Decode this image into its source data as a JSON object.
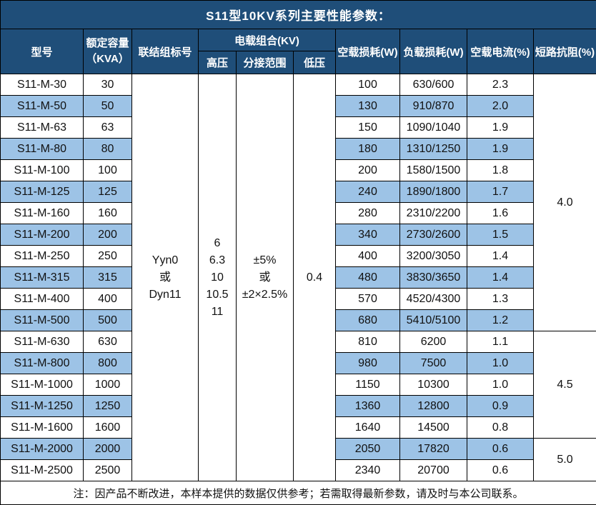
{
  "title": "S11型10KV系列主要性能参数：",
  "colors": {
    "header_bg": "#1F4E79",
    "stripe_bg": "#9DC3E6",
    "border": "#000000",
    "title_text": "#FFFFFF"
  },
  "header": {
    "model": "型号",
    "capacity": "额定容量\n（KVA）",
    "connection": "联结组标号",
    "voltage_group": "电载组合(KV)",
    "hv": "高压",
    "tap_range": "分接范围",
    "lv": "低压",
    "no_load_loss": "空载损耗(W)",
    "load_loss": "负载损耗(W)",
    "no_load_current": "空载电流(%)",
    "impedance": "短路抗阻(%)"
  },
  "merged": {
    "connection": "Yyn0\n或\nDyn11",
    "hv": "6\n6.3\n10\n10.5\n11",
    "tap_range": "±5%\n或\n±2×2.5%",
    "lv": "0.4"
  },
  "rows": [
    {
      "model": "S11-M-30",
      "capacity": "30",
      "no_load_loss": "100",
      "load_loss": "630/600",
      "no_load_current": "2.3"
    },
    {
      "model": "S11-M-50",
      "capacity": "50",
      "no_load_loss": "130",
      "load_loss": "910/870",
      "no_load_current": "2.0"
    },
    {
      "model": "S11-M-63",
      "capacity": "63",
      "no_load_loss": "150",
      "load_loss": "1090/1040",
      "no_load_current": "1.9"
    },
    {
      "model": "S11-M-80",
      "capacity": "80",
      "no_load_loss": "180",
      "load_loss": "1310/1250",
      "no_load_current": "1.9"
    },
    {
      "model": "S11-M-100",
      "capacity": "100",
      "no_load_loss": "200",
      "load_loss": "1580/1500",
      "no_load_current": "1.8"
    },
    {
      "model": "S11-M-125",
      "capacity": "125",
      "no_load_loss": "240",
      "load_loss": "1890/1800",
      "no_load_current": "1.7"
    },
    {
      "model": "S11-M-160",
      "capacity": "160",
      "no_load_loss": "280",
      "load_loss": "2310/2200",
      "no_load_current": "1.6"
    },
    {
      "model": "S11-M-200",
      "capacity": "200",
      "no_load_loss": "340",
      "load_loss": "2730/2600",
      "no_load_current": "1.5"
    },
    {
      "model": "S11-M-250",
      "capacity": "250",
      "no_load_loss": "400",
      "load_loss": "3200/3050",
      "no_load_current": "1.4"
    },
    {
      "model": "S11-M-315",
      "capacity": "315",
      "no_load_loss": "480",
      "load_loss": "3830/3650",
      "no_load_current": "1.4"
    },
    {
      "model": "S11-M-400",
      "capacity": "400",
      "no_load_loss": "570",
      "load_loss": "4520/4300",
      "no_load_current": "1.3"
    },
    {
      "model": "S11-M-500",
      "capacity": "500",
      "no_load_loss": "680",
      "load_loss": "5410/5100",
      "no_load_current": "1.2"
    },
    {
      "model": "S11-M-630",
      "capacity": "630",
      "no_load_loss": "810",
      "load_loss": "6200",
      "no_load_current": "1.1"
    },
    {
      "model": "S11-M-800",
      "capacity": "800",
      "no_load_loss": "980",
      "load_loss": "7500",
      "no_load_current": "1.0"
    },
    {
      "model": "S11-M-1000",
      "capacity": "1000",
      "no_load_loss": "1150",
      "load_loss": "10300",
      "no_load_current": "1.0"
    },
    {
      "model": "S11-M-1250",
      "capacity": "1250",
      "no_load_loss": "1360",
      "load_loss": "12800",
      "no_load_current": "0.9"
    },
    {
      "model": "S11-M-1600",
      "capacity": "1600",
      "no_load_loss": "1640",
      "load_loss": "14500",
      "no_load_current": "0.8"
    },
    {
      "model": "S11-M-2000",
      "capacity": "2000",
      "no_load_loss": "2050",
      "load_loss": "17820",
      "no_load_current": "0.6"
    },
    {
      "model": "S11-M-2500",
      "capacity": "2500",
      "no_load_loss": "2340",
      "load_loss": "20700",
      "no_load_current": "0.6"
    }
  ],
  "impedance_groups": [
    {
      "value": "4.0",
      "start": 0,
      "span": 12
    },
    {
      "value": "4.5",
      "start": 12,
      "span": 5
    },
    {
      "value": "5.0",
      "start": 17,
      "span": 2
    }
  ],
  "note": "注：因产品不断改进，本样本提供的数据仅供参考；若需取得最新参数，请及时与本公司联系。"
}
